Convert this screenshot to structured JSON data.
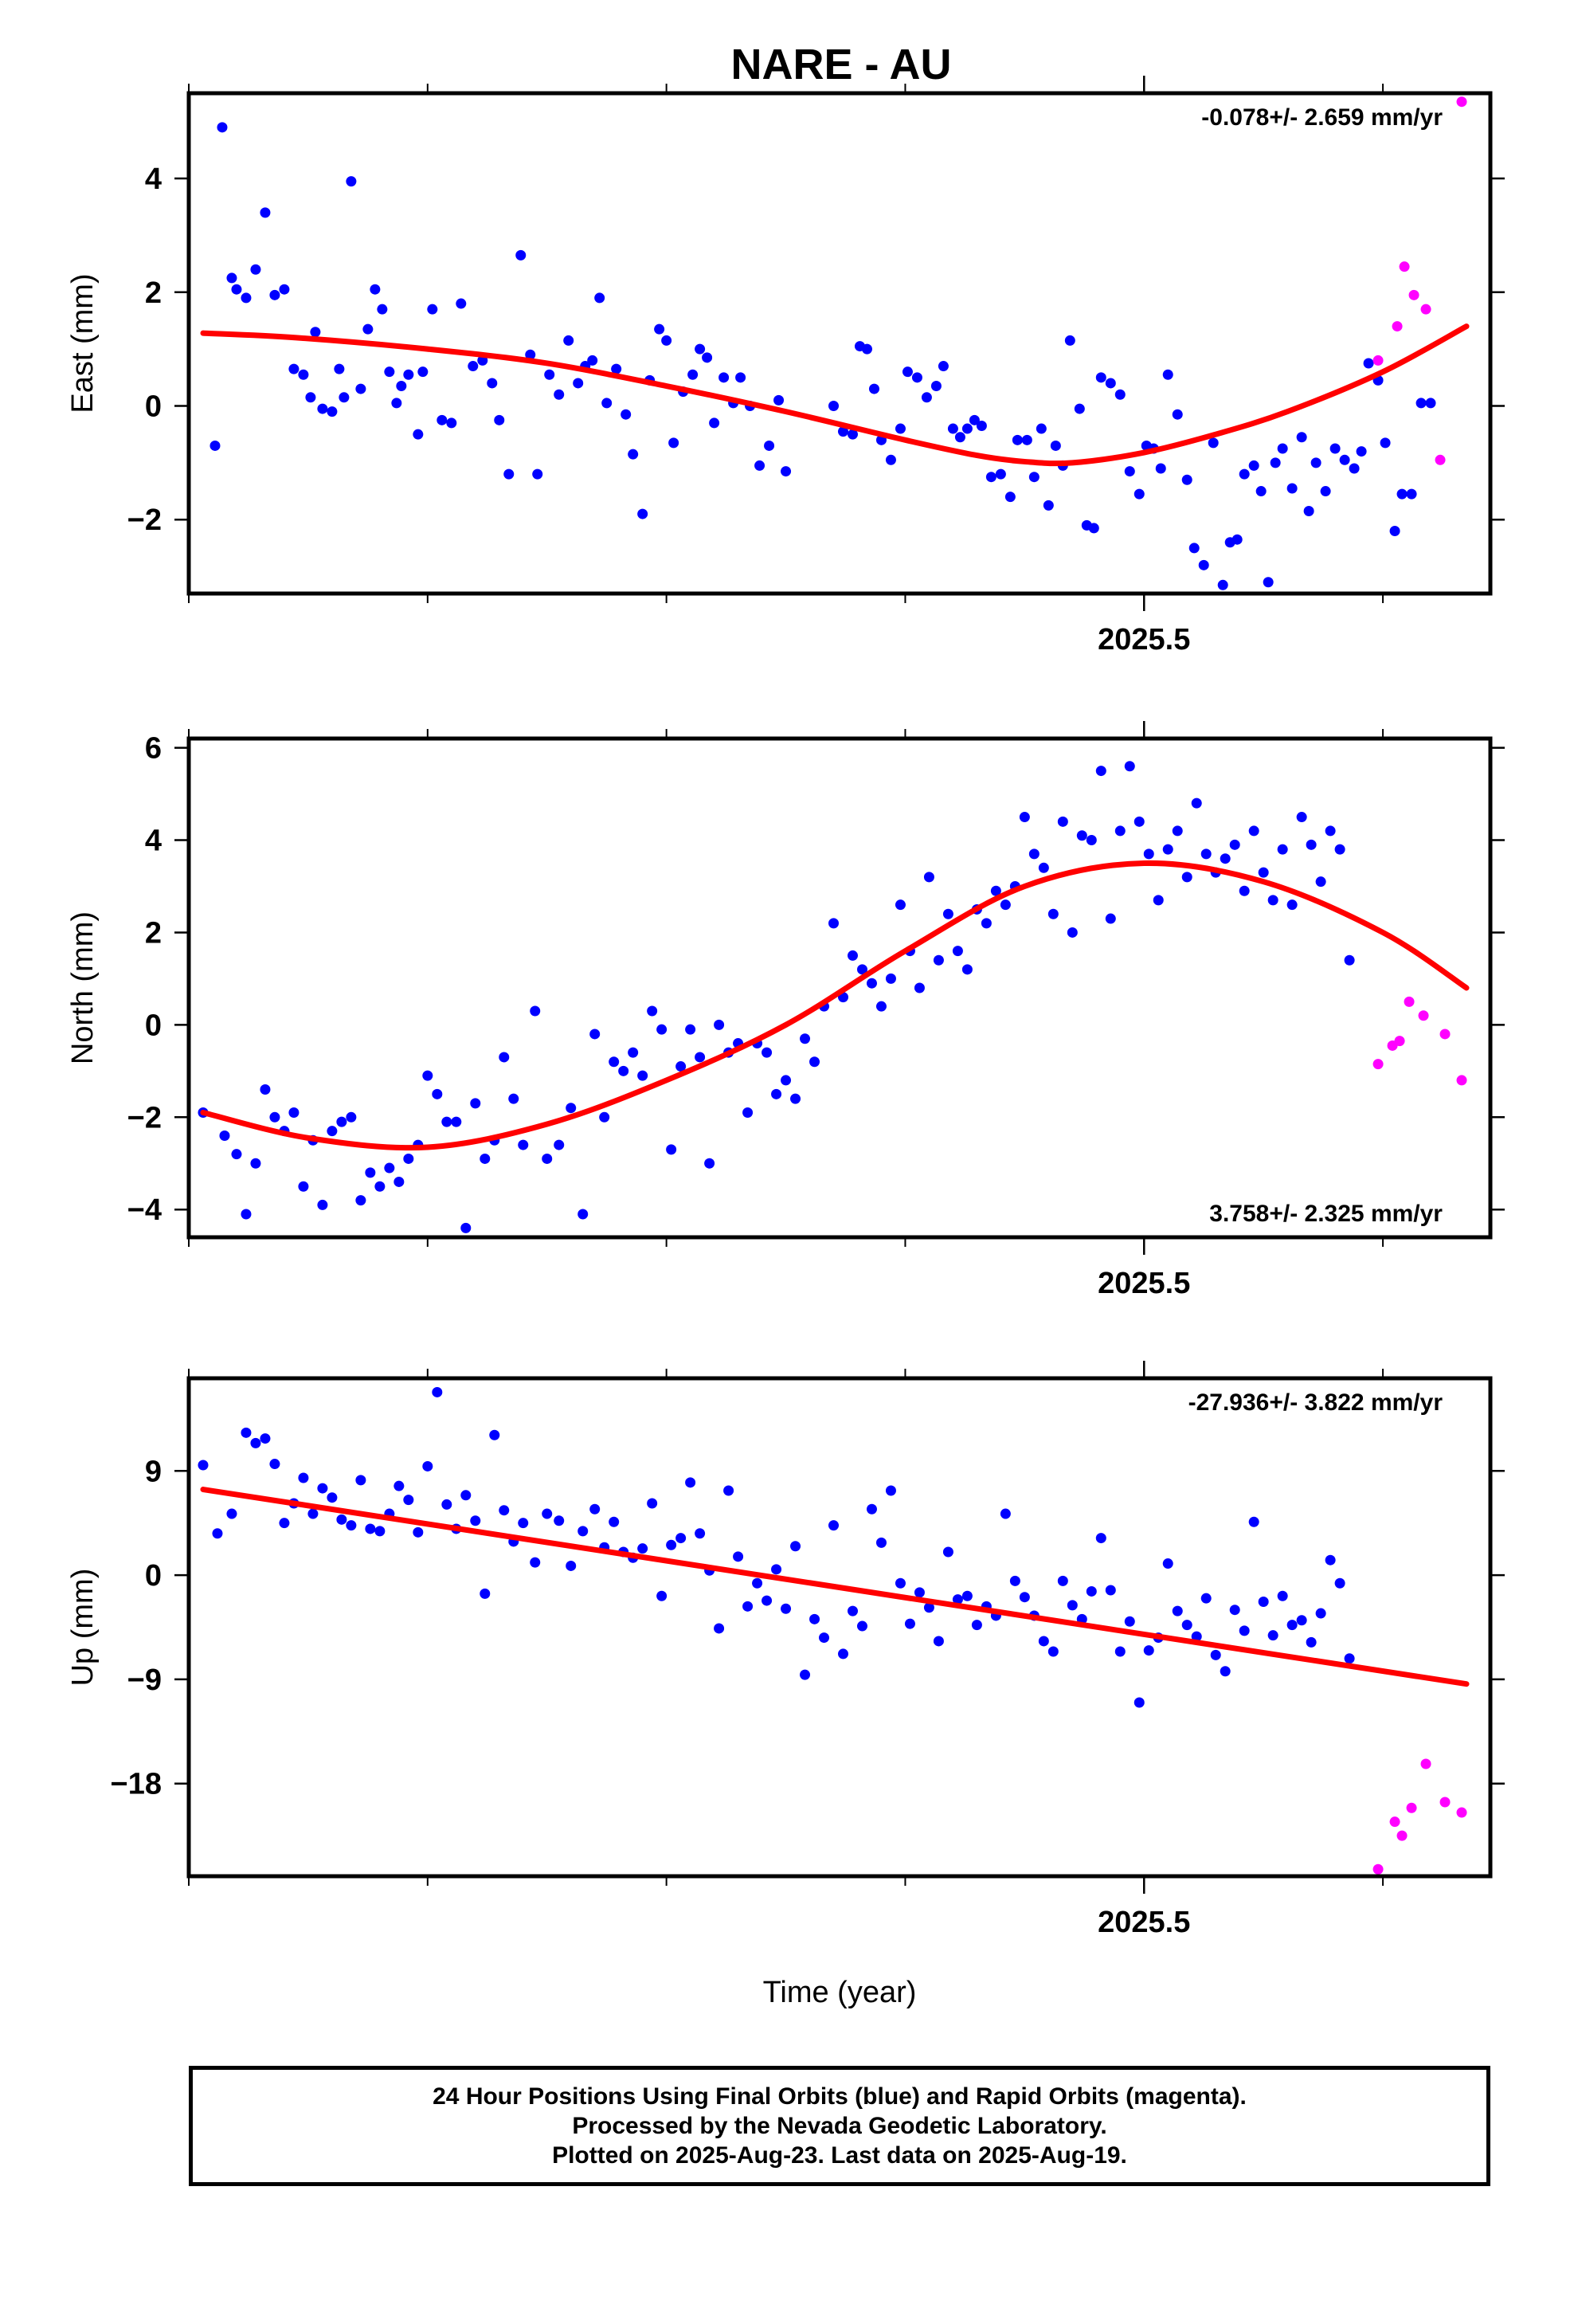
{
  "title": "NARE - AU",
  "footer": {
    "lines": [
      "24 Hour Positions Using Final Orbits (blue) and Rapid Orbits (magenta).",
      "Processed by the Nevada Geodetic Laboratory.",
      "Plotted on 2025-Aug-23. Last data on 2025-Aug-19."
    ]
  },
  "colors": {
    "final": "#0000ff",
    "rapid": "#ff00ff",
    "fit": "#ff0000",
    "frame": "#000000"
  },
  "chart_data": [
    {
      "type": "scatter",
      "name": "east",
      "ylabel": "East (mm)",
      "xlabel": "",
      "x_tick_label": "2025.5",
      "rate_text": "-0.078+/- 2.659 mm/yr",
      "rate_position": "top-right",
      "xlim": [
        2025.1,
        2025.645
      ],
      "ylim": [
        -3.3,
        5.5
      ],
      "yticks": [
        -2,
        0,
        2,
        4
      ],
      "ytick_labels": [
        "−2",
        "0",
        "2",
        "4"
      ],
      "final_x": [
        2025.111,
        2025.114,
        2025.118,
        2025.12,
        2025.124,
        2025.128,
        2025.132,
        2025.136,
        2025.14,
        2025.144,
        2025.148,
        2025.151,
        2025.153,
        2025.156,
        2025.16,
        2025.163,
        2025.165,
        2025.168,
        2025.172,
        2025.175,
        2025.178,
        2025.181,
        2025.184,
        2025.187,
        2025.189,
        2025.192,
        2025.196,
        2025.198,
        2025.202,
        2025.206,
        2025.21,
        2025.214,
        2025.219,
        2025.223,
        2025.227,
        2025.23,
        2025.234,
        2025.239,
        2025.243,
        2025.246,
        2025.251,
        2025.255,
        2025.259,
        2025.263,
        2025.266,
        2025.269,
        2025.272,
        2025.275,
        2025.279,
        2025.283,
        2025.286,
        2025.29,
        2025.293,
        2025.297,
        2025.3,
        2025.303,
        2025.307,
        2025.311,
        2025.314,
        2025.317,
        2025.32,
        2025.324,
        2025.328,
        2025.331,
        2025.335,
        2025.339,
        2025.343,
        2025.347,
        2025.35,
        2025.37,
        2025.374,
        2025.378,
        2025.381,
        2025.384,
        2025.387,
        2025.39,
        2025.394,
        2025.398,
        2025.401,
        2025.405,
        2025.409,
        2025.413,
        2025.416,
        2025.42,
        2025.423,
        2025.426,
        2025.429,
        2025.432,
        2025.436,
        2025.44,
        2025.444,
        2025.447,
        2025.451,
        2025.454,
        2025.457,
        2025.46,
        2025.463,
        2025.466,
        2025.469,
        2025.473,
        2025.476,
        2025.479,
        2025.482,
        2025.486,
        2025.49,
        2025.494,
        2025.498,
        2025.501,
        2025.504,
        2025.507,
        2025.51,
        2025.514,
        2025.518,
        2025.521,
        2025.525,
        2025.529,
        2025.533,
        2025.536,
        2025.539,
        2025.542,
        2025.546,
        2025.549,
        2025.552,
        2025.555,
        2025.558,
        2025.562,
        2025.566,
        2025.569,
        2025.572,
        2025.576,
        2025.58,
        2025.584,
        2025.588,
        2025.591,
        2025.594,
        2025.598,
        2025.601,
        2025.605,
        2025.608,
        2025.612,
        2025.616,
        2025.62
      ],
      "final_y": [
        -0.7,
        4.9,
        2.25,
        2.05,
        1.9,
        2.4,
        3.4,
        1.95,
        2.05,
        0.65,
        0.55,
        0.15,
        1.3,
        -0.05,
        -0.1,
        0.65,
        0.15,
        3.95,
        0.3,
        1.35,
        2.05,
        1.7,
        0.6,
        0.05,
        0.35,
        0.55,
        -0.5,
        0.6,
        1.7,
        -0.25,
        -0.3,
        1.8,
        0.7,
        0.8,
        0.4,
        -0.25,
        -1.2,
        2.65,
        0.9,
        -1.2,
        0.55,
        0.2,
        1.15,
        0.4,
        0.7,
        0.8,
        1.9,
        0.05,
        0.65,
        -0.15,
        -0.85,
        -1.9,
        0.45,
        1.35,
        1.15,
        -0.65,
        0.25,
        0.55,
        1.0,
        0.85,
        -0.3,
        0.5,
        0.05,
        0.5,
        0.0,
        -1.05,
        -0.7,
        0.1,
        -1.15,
        0.0,
        -0.45,
        -0.5,
        1.05,
        1.0,
        0.3,
        -0.6,
        -0.95,
        -0.4,
        0.6,
        0.5,
        0.15,
        0.35,
        0.7,
        -0.4,
        -0.55,
        -0.4,
        -0.25,
        -0.35,
        -1.25,
        -1.2,
        -1.6,
        -0.6,
        -0.6,
        -1.25,
        -0.4,
        -1.75,
        -0.7,
        -1.05,
        1.15,
        -0.05,
        -2.1,
        -2.15,
        0.5,
        0.4,
        0.2,
        -1.15,
        -1.55,
        -0.7,
        -0.75,
        -1.1,
        0.55,
        -0.15,
        -1.3,
        -2.5,
        -2.8,
        -0.65,
        -3.15,
        -2.4,
        -2.35,
        -1.2,
        -1.05,
        -1.5,
        -3.1,
        -1.0,
        -0.75,
        -1.45,
        -0.55,
        -1.85,
        -1.0,
        -1.5,
        -0.75,
        -0.95,
        -1.1,
        -0.8,
        0.75,
        0.45,
        -0.65,
        -2.2,
        -1.55,
        -1.55,
        0.05,
        0.05,
        -0.5,
        -0.6
      ],
      "rapid_x": [
        2025.598,
        2025.606,
        2025.609,
        2025.613,
        2025.618,
        2025.624,
        2025.633
      ],
      "rapid_y": [
        0.8,
        1.4,
        2.45,
        1.95,
        1.7,
        -0.95,
        5.35
      ],
      "fit_x": [
        2025.106,
        2025.145,
        2025.2,
        2025.25,
        2025.3,
        2025.35,
        2025.4,
        2025.43,
        2025.45,
        2025.47,
        2025.5,
        2025.53,
        2025.56,
        2025.6,
        2025.635
      ],
      "fit_y": [
        1.28,
        1.2,
        1.0,
        0.75,
        0.35,
        -0.1,
        -0.6,
        -0.87,
        -0.98,
        -1.0,
        -0.82,
        -0.5,
        -0.1,
        0.6,
        1.4
      ]
    },
    {
      "type": "scatter",
      "name": "north",
      "ylabel": "North (mm)",
      "xlabel": "",
      "x_tick_label": "2025.5",
      "rate_text": "3.758+/- 2.325 mm/yr",
      "rate_position": "bottom-right",
      "xlim": [
        2025.1,
        2025.645
      ],
      "ylim": [
        -4.6,
        6.2
      ],
      "yticks": [
        -4,
        -2,
        0,
        2,
        4,
        6
      ],
      "ytick_labels": [
        "−4",
        "−2",
        "0",
        "2",
        "4",
        "6"
      ],
      "final_x": [
        2025.106,
        2025.115,
        2025.12,
        2025.124,
        2025.128,
        2025.132,
        2025.136,
        2025.14,
        2025.144,
        2025.148,
        2025.152,
        2025.156,
        2025.16,
        2025.164,
        2025.168,
        2025.172,
        2025.176,
        2025.18,
        2025.184,
        2025.188,
        2025.192,
        2025.196,
        2025.2,
        2025.204,
        2025.208,
        2025.212,
        2025.216,
        2025.22,
        2025.224,
        2025.228,
        2025.232,
        2025.236,
        2025.24,
        2025.245,
        2025.25,
        2025.255,
        2025.26,
        2025.265,
        2025.27,
        2025.274,
        2025.278,
        2025.282,
        2025.286,
        2025.29,
        2025.294,
        2025.298,
        2025.302,
        2025.306,
        2025.31,
        2025.314,
        2025.318,
        2025.322,
        2025.326,
        2025.33,
        2025.334,
        2025.338,
        2025.342,
        2025.346,
        2025.35,
        2025.354,
        2025.358,
        2025.362,
        2025.366,
        2025.37,
        2025.374,
        2025.378,
        2025.382,
        2025.386,
        2025.39,
        2025.394,
        2025.398,
        2025.402,
        2025.406,
        2025.41,
        2025.414,
        2025.418,
        2025.422,
        2025.426,
        2025.43,
        2025.434,
        2025.438,
        2025.442,
        2025.446,
        2025.45,
        2025.454,
        2025.458,
        2025.462,
        2025.466,
        2025.47,
        2025.474,
        2025.478,
        2025.482,
        2025.486,
        2025.49,
        2025.494,
        2025.498,
        2025.502,
        2025.506,
        2025.51,
        2025.514,
        2025.518,
        2025.522,
        2025.526,
        2025.53,
        2025.534,
        2025.538,
        2025.542,
        2025.546,
        2025.55,
        2025.554,
        2025.558,
        2025.562,
        2025.566,
        2025.57,
        2025.574,
        2025.578,
        2025.582,
        2025.586
      ],
      "final_y": [
        -1.9,
        -2.4,
        -2.8,
        -4.1,
        -3.0,
        -1.4,
        -2.0,
        -2.3,
        -1.9,
        -3.5,
        -2.5,
        -3.9,
        -2.3,
        -2.1,
        -2.0,
        -3.8,
        -3.2,
        -3.5,
        -3.1,
        -3.4,
        -2.9,
        -2.6,
        -1.1,
        -1.5,
        -2.1,
        -2.1,
        -4.4,
        -1.7,
        -2.9,
        -2.5,
        -0.7,
        -1.6,
        -2.6,
        0.3,
        -2.9,
        -2.6,
        -1.8,
        -4.1,
        -0.2,
        -2.0,
        -0.8,
        -1.0,
        -0.6,
        -1.1,
        0.3,
        -0.1,
        -2.7,
        -0.9,
        -0.1,
        -0.7,
        -3.0,
        0.0,
        -0.6,
        -0.4,
        -1.9,
        -0.4,
        -0.6,
        -1.5,
        -1.2,
        -1.6,
        -0.3,
        -0.8,
        0.4,
        2.2,
        0.6,
        1.5,
        1.2,
        0.9,
        0.4,
        1.0,
        2.6,
        1.6,
        0.8,
        3.2,
        1.4,
        2.4,
        1.6,
        1.2,
        2.5,
        2.2,
        2.9,
        2.6,
        3.0,
        4.5,
        3.7,
        3.4,
        2.4,
        4.4,
        2.0,
        4.1,
        4.0,
        5.5,
        2.3,
        4.2,
        5.6,
        4.4,
        3.7,
        2.7,
        3.8,
        4.2,
        3.2,
        4.8,
        3.7,
        3.3,
        3.6,
        3.9,
        2.9,
        4.2,
        3.3,
        2.7,
        3.8,
        2.6,
        4.5,
        3.9,
        3.1,
        4.2,
        3.8,
        1.4
      ],
      "rapid_x": [
        2025.598,
        2025.604,
        2025.607,
        2025.611,
        2025.617,
        2025.626,
        2025.633
      ],
      "rapid_y": [
        -0.85,
        -0.45,
        -0.35,
        0.5,
        0.2,
        -0.2,
        -1.2
      ],
      "fit_x": [
        2025.106,
        2025.15,
        2025.2,
        2025.25,
        2025.3,
        2025.35,
        2025.4,
        2025.45,
        2025.5,
        2025.55,
        2025.6,
        2025.635
      ],
      "fit_y": [
        -1.9,
        -2.45,
        -2.65,
        -2.15,
        -1.2,
        0.0,
        1.6,
        3.0,
        3.5,
        3.1,
        2.0,
        0.8
      ]
    },
    {
      "type": "scatter",
      "name": "up",
      "ylabel": "Up (mm)",
      "xlabel": "Time (year)",
      "x_tick_label": "2025.5",
      "rate_text": "-27.936+/- 3.822 mm/yr",
      "rate_position": "top-right",
      "xlim": [
        2025.1,
        2025.645
      ],
      "ylim": [
        -26,
        17
      ],
      "yticks": [
        -18,
        -9,
        0,
        9
      ],
      "ytick_labels": [
        "−18",
        "−9",
        "0",
        "9"
      ],
      "final_x": [
        2025.106,
        2025.112,
        2025.118,
        2025.124,
        2025.128,
        2025.132,
        2025.136,
        2025.14,
        2025.144,
        2025.148,
        2025.152,
        2025.156,
        2025.16,
        2025.164,
        2025.168,
        2025.172,
        2025.176,
        2025.18,
        2025.184,
        2025.188,
        2025.192,
        2025.196,
        2025.2,
        2025.204,
        2025.208,
        2025.212,
        2025.216,
        2025.22,
        2025.224,
        2025.228,
        2025.232,
        2025.236,
        2025.24,
        2025.245,
        2025.25,
        2025.255,
        2025.26,
        2025.265,
        2025.27,
        2025.274,
        2025.278,
        2025.282,
        2025.286,
        2025.29,
        2025.294,
        2025.298,
        2025.302,
        2025.306,
        2025.31,
        2025.314,
        2025.318,
        2025.322,
        2025.326,
        2025.33,
        2025.334,
        2025.338,
        2025.342,
        2025.346,
        2025.35,
        2025.354,
        2025.358,
        2025.362,
        2025.366,
        2025.37,
        2025.374,
        2025.378,
        2025.382,
        2025.386,
        2025.39,
        2025.394,
        2025.398,
        2025.402,
        2025.406,
        2025.41,
        2025.414,
        2025.418,
        2025.422,
        2025.426,
        2025.43,
        2025.434,
        2025.438,
        2025.442,
        2025.446,
        2025.45,
        2025.454,
        2025.458,
        2025.462,
        2025.466,
        2025.47,
        2025.474,
        2025.478,
        2025.482,
        2025.486,
        2025.49,
        2025.494,
        2025.498,
        2025.502,
        2025.506,
        2025.51,
        2025.514,
        2025.518,
        2025.522,
        2025.526,
        2025.53,
        2025.534,
        2025.538,
        2025.542,
        2025.546,
        2025.55,
        2025.554,
        2025.558,
        2025.562,
        2025.566,
        2025.57,
        2025.574,
        2025.578,
        2025.582,
        2025.586,
        2025.59
      ],
      "final_y": [
        9.5,
        3.6,
        5.3,
        12.3,
        11.4,
        11.8,
        9.6,
        4.5,
        6.2,
        8.4,
        5.3,
        7.5,
        6.7,
        4.8,
        4.3,
        8.2,
        4.0,
        3.8,
        5.3,
        7.7,
        6.5,
        3.7,
        9.4,
        15.8,
        6.1,
        4.0,
        6.9,
        4.7,
        -1.6,
        12.1,
        5.6,
        2.9,
        4.5,
        1.1,
        5.3,
        4.7,
        0.8,
        3.8,
        5.7,
        2.4,
        4.6,
        2.0,
        1.5,
        2.3,
        6.2,
        -1.8,
        2.6,
        3.2,
        8.0,
        3.6,
        0.4,
        -4.6,
        7.3,
        1.6,
        -2.7,
        -0.7,
        -2.2,
        0.5,
        -2.9,
        2.5,
        -8.6,
        -3.8,
        -5.4,
        4.3,
        -6.8,
        -3.1,
        -4.4,
        5.7,
        2.8,
        7.3,
        -0.7,
        -4.2,
        -1.5,
        -2.8,
        -5.7,
        2.0,
        -2.1,
        -1.8,
        -4.3,
        -2.7,
        -3.5,
        5.3,
        -0.5,
        -1.9,
        -3.5,
        -5.7,
        -6.6,
        -0.5,
        -2.6,
        -3.8,
        -1.4,
        3.2,
        -1.3,
        -6.6,
        -4.0,
        -11.0,
        -6.5,
        -5.4,
        1.0,
        -3.1,
        -4.3,
        -5.3,
        -2.0,
        -6.9,
        -8.3,
        -3.0,
        -4.8,
        4.6,
        -2.3,
        -5.2,
        -1.8,
        -4.3,
        -3.9,
        -5.8,
        -3.3,
        1.3,
        -0.7,
        -7.2
      ],
      "rapid_x": [
        2025.598,
        2025.605,
        2025.608,
        2025.612,
        2025.618,
        2025.626,
        2025.633
      ],
      "rapid_y": [
        -25.4,
        -21.3,
        -22.5,
        -20.1,
        -16.3,
        -19.6,
        -20.5
      ],
      "fit_x": [
        2025.106,
        2025.635
      ],
      "fit_y": [
        7.4,
        -9.4
      ]
    }
  ]
}
